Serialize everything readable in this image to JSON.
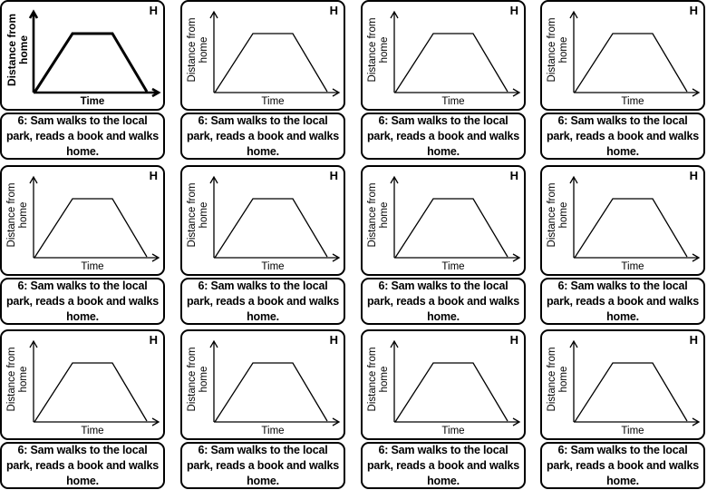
{
  "cards": [
    {
      "badge": "H",
      "y_label": "Distance from home",
      "x_label": "Time",
      "caption": "6: Sam walks to the local park, reads a book and walks home."
    },
    {
      "badge": "H",
      "y_label": "Distance from home",
      "x_label": "Time",
      "caption": "6: Sam walks to the local park, reads a book and walks home."
    },
    {
      "badge": "H",
      "y_label": "Distance from home",
      "x_label": "Time",
      "caption": "6: Sam walks to the local park, reads a book and walks home."
    },
    {
      "badge": "H",
      "y_label": "Distance from home",
      "x_label": "Time",
      "caption": "6: Sam walks to the local park, reads a book and walks home."
    },
    {
      "badge": "H",
      "y_label": "Distance from home",
      "x_label": "Time",
      "caption": "6: Sam walks to the local park, reads a book and walks home."
    },
    {
      "badge": "H",
      "y_label": "Distance from home",
      "x_label": "Time",
      "caption": "6: Sam walks to the local park, reads a book and walks home."
    },
    {
      "badge": "H",
      "y_label": "Distance from home",
      "x_label": "Time",
      "caption": "6: Sam walks to the local park, reads a book and walks home."
    },
    {
      "badge": "H",
      "y_label": "Distance from home",
      "x_label": "Time",
      "caption": "6: Sam walks to the local park, reads a book and walks home."
    },
    {
      "badge": "H",
      "y_label": "Distance from home",
      "x_label": "Time",
      "caption": "6: Sam walks to the local park, reads a book and walks home."
    },
    {
      "badge": "H",
      "y_label": "Distance from home",
      "x_label": "Time",
      "caption": "6: Sam walks to the local park, reads a book and walks home."
    },
    {
      "badge": "H",
      "y_label": "Distance from home",
      "x_label": "Time",
      "caption": "6: Sam walks to the local park, reads a book and walks home."
    },
    {
      "badge": "H",
      "y_label": "Distance from home",
      "x_label": "Time",
      "caption": "6: Sam walks to the local park, reads a book and walks home."
    }
  ]
}
